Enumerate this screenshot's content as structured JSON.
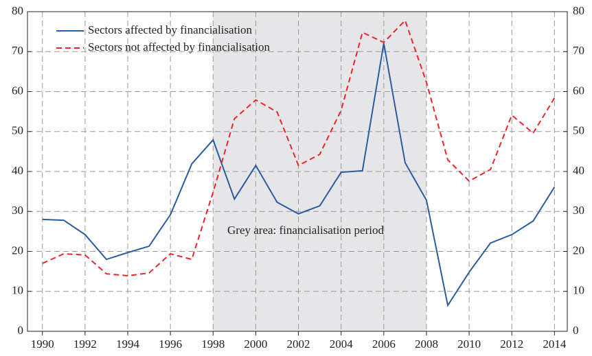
{
  "chart_data": {
    "type": "line",
    "x": [
      1990,
      1991,
      1992,
      1993,
      1994,
      1995,
      1996,
      1997,
      1998,
      1999,
      2000,
      2001,
      2002,
      2003,
      2004,
      2005,
      2006,
      2007,
      2008,
      2009,
      2010,
      2011,
      2012,
      2013,
      2014
    ],
    "series": [
      {
        "name": "Sectors affected by financialisation",
        "color": "#2a5aa0",
        "dash": "solid",
        "values": [
          28.0,
          27.8,
          24.2,
          18.0,
          19.7,
          21.3,
          29.2,
          41.9,
          47.9,
          33.1,
          41.5,
          32.3,
          29.4,
          31.4,
          39.8,
          40.2,
          72.1,
          42.2,
          32.8,
          6.5,
          14.8,
          22.1,
          24.2,
          27.6,
          36.1
        ]
      },
      {
        "name": "Sectors not affected by financialisation",
        "color": "#e8262c",
        "dash": "dashed",
        "values": [
          17.0,
          19.4,
          19.1,
          14.4,
          13.9,
          14.6,
          19.4,
          18.0,
          34.8,
          53.2,
          57.9,
          54.9,
          41.5,
          44.3,
          55.3,
          74.8,
          72.3,
          77.8,
          62.3,
          42.9,
          37.6,
          40.5,
          54.1,
          49.6,
          58.4
        ]
      }
    ],
    "shaded_period": [
      1998,
      2008
    ],
    "annotation": "Grey area: financialisation period",
    "xlim": [
      1989.3,
      2014.6
    ],
    "xticks": [
      1990,
      1992,
      1994,
      1996,
      1998,
      2000,
      2002,
      2004,
      2006,
      2008,
      2010,
      2012,
      2014
    ],
    "ylim": [
      0,
      80
    ],
    "yticks": [
      0,
      10,
      20,
      30,
      40,
      50,
      60,
      70,
      80
    ],
    "y2lim": [
      0,
      80
    ],
    "y2ticks": [
      0,
      10,
      20,
      30,
      40,
      50,
      60,
      70,
      80
    ],
    "grid": true,
    "legend": "top-left"
  }
}
